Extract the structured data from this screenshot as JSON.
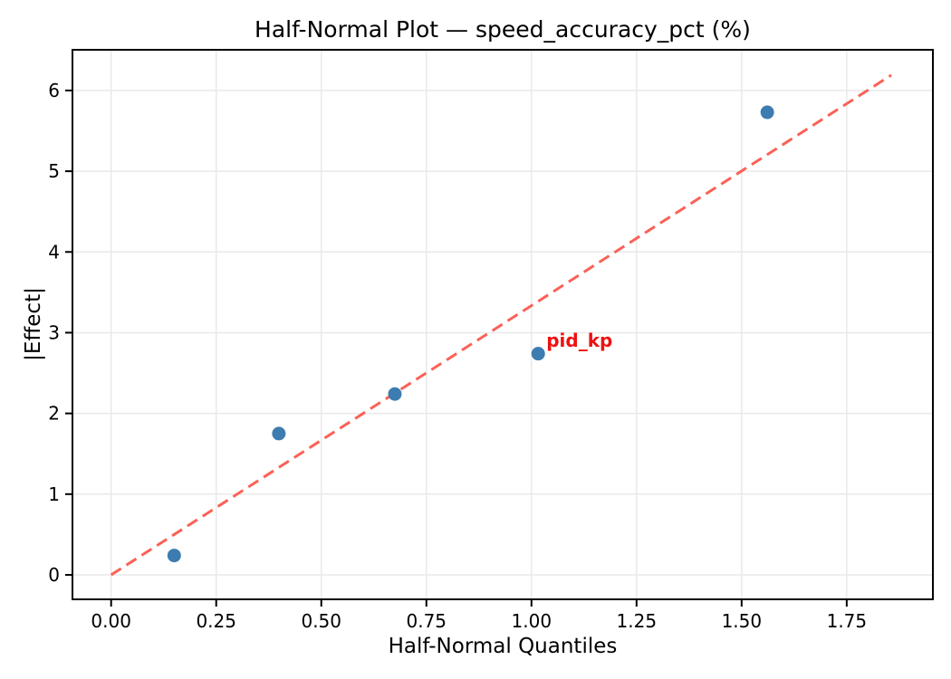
{
  "chart_data": {
    "type": "scatter",
    "title": "Half-Normal Plot — speed_accuracy_pct (%)",
    "xlabel": "Half-Normal Quantiles",
    "ylabel": "|Effect|",
    "xlim": [
      -0.092,
      1.955
    ],
    "ylim": [
      -0.303,
      6.504
    ],
    "grid": true,
    "legend": "none",
    "xticks": {
      "values": [
        0.0,
        0.25,
        0.5,
        0.75,
        1.0,
        1.25,
        1.5,
        1.75
      ],
      "labels": [
        "0.00",
        "0.25",
        "0.50",
        "0.75",
        "1.00",
        "1.25",
        "1.50",
        "1.75"
      ]
    },
    "yticks": {
      "values": [
        0,
        1,
        2,
        3,
        4,
        5,
        6
      ],
      "labels": [
        "0",
        "1",
        "2",
        "3",
        "4",
        "5",
        "6"
      ]
    },
    "points": {
      "marker": "circle",
      "x": [
        0.15,
        0.399,
        0.675,
        1.016,
        1.561
      ],
      "y": [
        0.24,
        1.75,
        2.24,
        2.74,
        5.73
      ],
      "color": "#3d7cb0",
      "radius_px": 7.5
    },
    "reference_line": {
      "style": "dashed",
      "color": "#fb6157",
      "x": [
        0.0,
        1.856
      ],
      "y": [
        0.0,
        6.19
      ],
      "slope": 3.34
    },
    "annotation": {
      "label": "pid_kp",
      "point_index": 3,
      "color": "#ee1111"
    },
    "colors": {
      "background": "#ffffff",
      "grid": "#e9e9e9",
      "spine": "#000000",
      "text": "#000000"
    }
  }
}
